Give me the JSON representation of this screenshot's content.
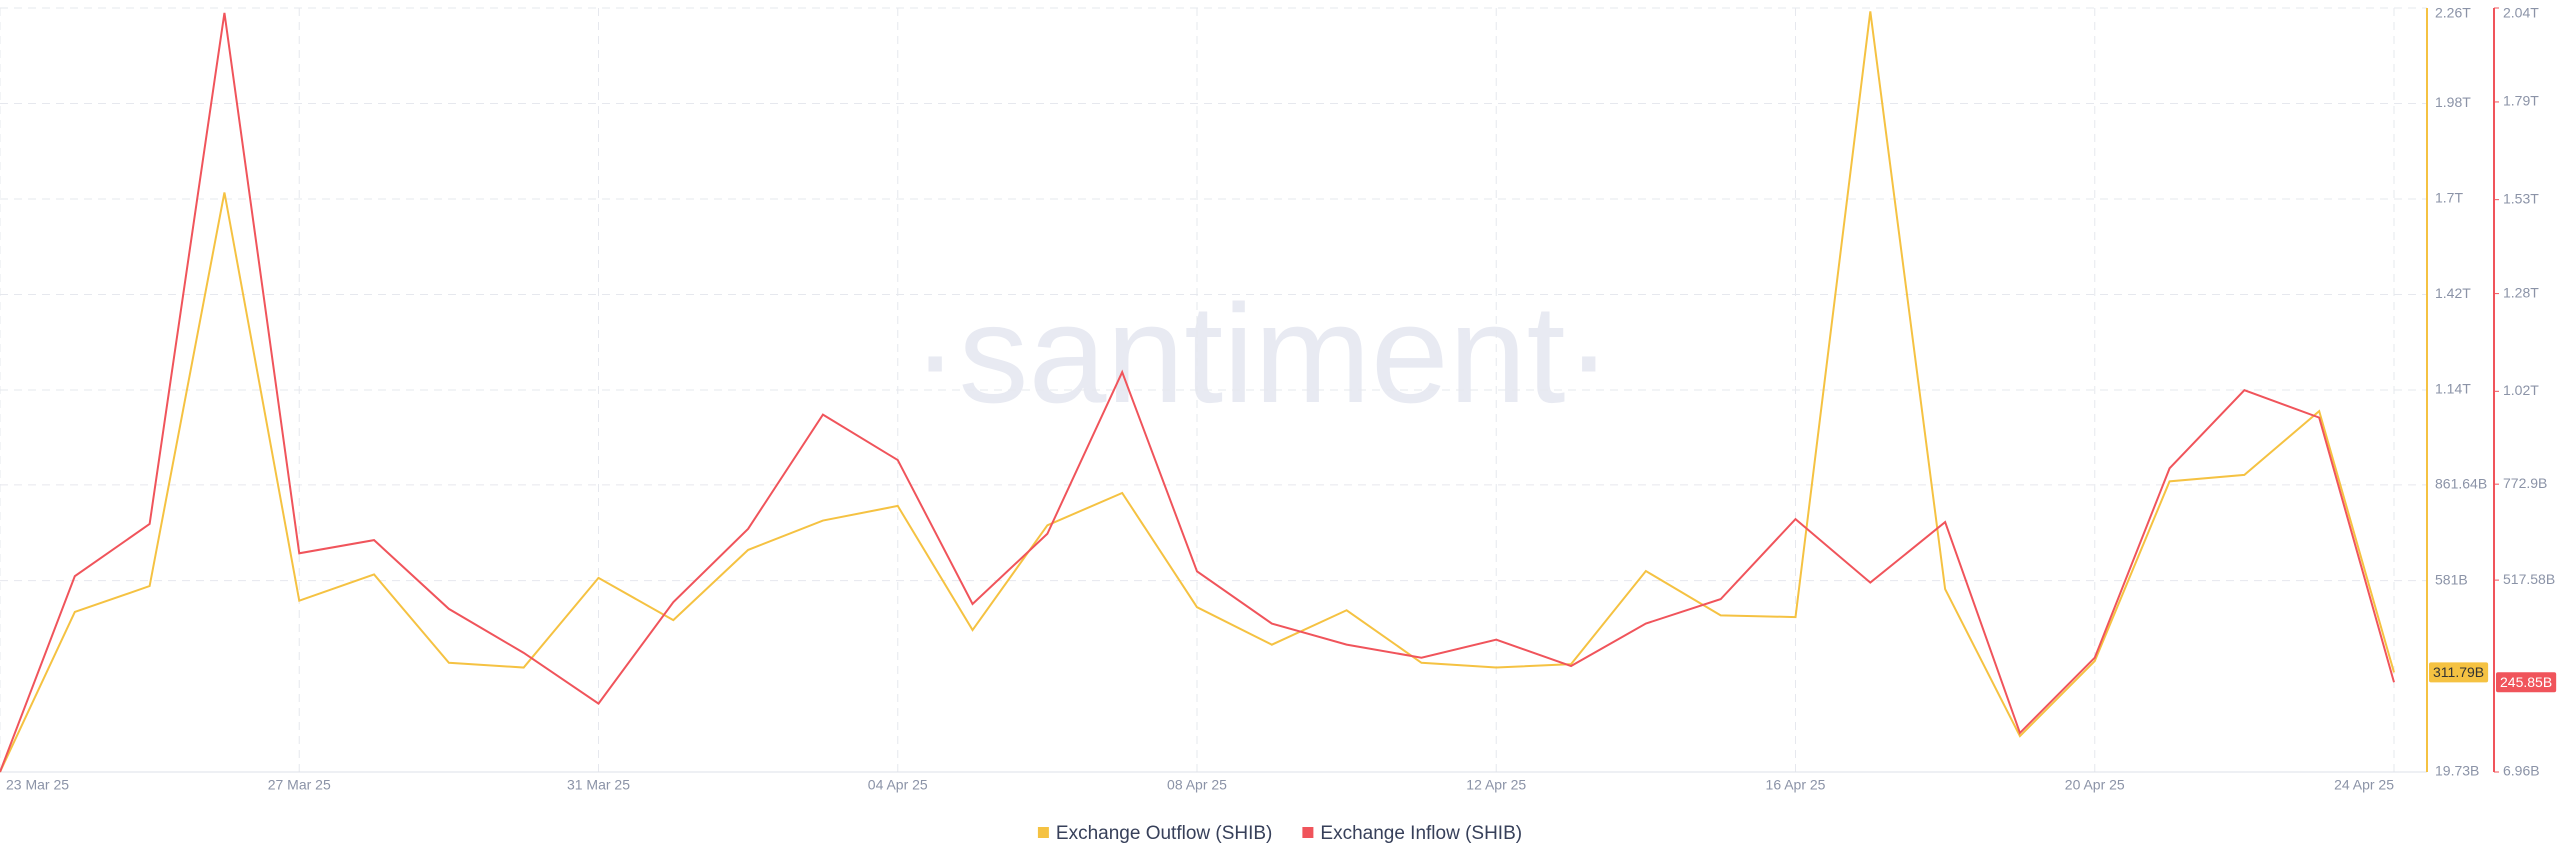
{
  "chart_data": {
    "type": "line",
    "watermark": "·santiment·",
    "categories": [
      "23 Mar 25",
      null,
      null,
      null,
      "27 Mar 25",
      null,
      null,
      null,
      "31 Mar 25",
      null,
      null,
      null,
      "04 Apr 25",
      null,
      null,
      null,
      "08 Apr 25",
      null,
      null,
      null,
      "12 Apr 25",
      null,
      null,
      null,
      "16 Apr 25",
      null,
      null,
      null,
      "20 Apr 25",
      null,
      null,
      null,
      "24 Apr 25"
    ],
    "series": [
      {
        "name": "Exchange Outflow (SHIB)",
        "color": "#f5c242",
        "axis": "y",
        "values": [
          19.73,
          489,
          565,
          1719,
          522,
          599,
          340,
          326,
          589,
          465,
          671,
          757,
          800,
          436,
          743,
          838,
          503,
          393,
          494,
          340,
          326,
          336,
          609,
          479,
          474,
          2250,
          556,
          125,
          345,
          872,
          891,
          1078,
          311.79
        ],
        "value_labels": [
          null,
          null,
          null,
          null,
          null,
          null,
          null,
          null,
          null,
          null,
          null,
          null,
          null,
          null,
          null,
          null,
          null,
          null,
          null,
          null,
          null,
          null,
          null,
          null,
          null,
          null,
          null,
          null,
          null,
          null,
          null,
          null,
          "311.79B"
        ]
      },
      {
        "name": "Exchange Inflow (SHIB)",
        "color": "#f0545b",
        "axis": "y2",
        "values": [
          6.96,
          528,
          667,
          2027,
          589,
          624,
          441,
          324,
          189,
          459,
          654,
          958,
          837,
          454,
          641,
          1071,
          541,
          402,
          346,
          311,
          359,
          289,
          402,
          467,
          680,
          511,
          672,
          111,
          311,
          815,
          1023,
          950,
          245.85
        ],
        "value_labels": [
          null,
          null,
          null,
          null,
          null,
          null,
          null,
          null,
          null,
          null,
          null,
          null,
          null,
          null,
          null,
          null,
          null,
          null,
          null,
          null,
          null,
          null,
          null,
          null,
          null,
          null,
          null,
          null,
          null,
          null,
          null,
          null,
          "245.85B"
        ]
      }
    ],
    "ylim": [
      19.73,
      2260
    ],
    "yticks": [
      {
        "value": 19.73,
        "label": "19.73B"
      },
      {
        "value": 581,
        "label": "581B"
      },
      {
        "value": 861.64,
        "label": "861.64B"
      },
      {
        "value": 1140,
        "label": "1.14T"
      },
      {
        "value": 1420,
        "label": "1.42T"
      },
      {
        "value": 1700,
        "label": "1.7T"
      },
      {
        "value": 1980,
        "label": "1.98T"
      },
      {
        "value": 2260,
        "label": "2.26T"
      }
    ],
    "y2lim": [
      6.96,
      2040
    ],
    "y2ticks": [
      {
        "value": 6.96,
        "label": "6.96B"
      },
      {
        "value": 517.58,
        "label": "517.58B"
      },
      {
        "value": 772.9,
        "label": "772.9B"
      },
      {
        "value": 1020,
        "label": "1.02T"
      },
      {
        "value": 1280,
        "label": "1.28T"
      },
      {
        "value": 1530,
        "label": "1.53T"
      },
      {
        "value": 1790,
        "label": "1.79T"
      },
      {
        "value": 2040,
        "label": "2.04T"
      }
    ],
    "grid": true
  }
}
